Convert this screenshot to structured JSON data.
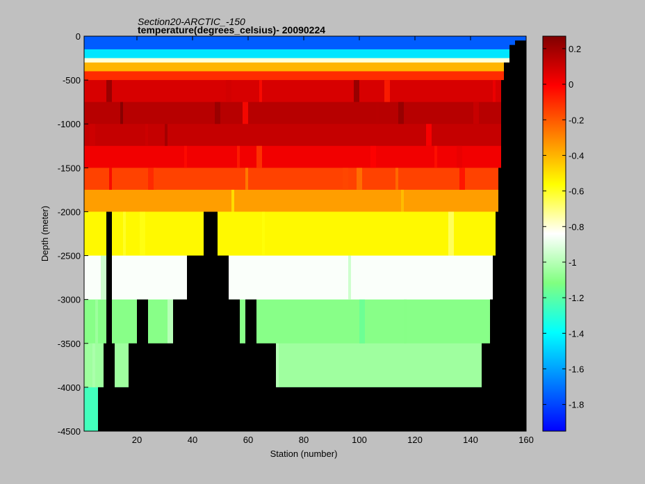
{
  "chart_data": {
    "type": "heatmap",
    "title_line1": "Section20-ARCTIC_-150",
    "title_line2": "temperature(degrees_celsius)- 20090224",
    "xlabel": "Station (number)",
    "ylabel": "Depth (meter)",
    "xlim": [
      1,
      160
    ],
    "ylim": [
      -4500,
      0
    ],
    "x_ticks": [
      20,
      40,
      60,
      80,
      100,
      120,
      140,
      160
    ],
    "y_ticks": [
      0,
      -500,
      -1000,
      -1500,
      -2000,
      -2500,
      -3000,
      -3500,
      -4000,
      -4500
    ],
    "colorbar": {
      "clim": [
        -1.95,
        0.27
      ],
      "ticks": [
        0.2,
        0,
        -0.2,
        -0.4,
        -0.6,
        -0.8,
        -1,
        -1.2,
        -1.4,
        -1.6,
        -1.8
      ],
      "colormap": "jet"
    },
    "layers": [
      {
        "top": 0,
        "bottom": -150,
        "value": -1.75
      },
      {
        "top": -150,
        "bottom": -250,
        "value": -1.45
      },
      {
        "top": -250,
        "bottom": -300,
        "value": -0.8
      },
      {
        "top": -300,
        "bottom": -400,
        "value": -0.4
      },
      {
        "top": -400,
        "bottom": -500,
        "value": -0.1
      },
      {
        "top": -500,
        "bottom": -750,
        "value": 0.08
      },
      {
        "top": -750,
        "bottom": -1000,
        "value": 0.15
      },
      {
        "top": -1000,
        "bottom": -1250,
        "value": 0.12
      },
      {
        "top": -1250,
        "bottom": -1500,
        "value": 0.02
      },
      {
        "top": -1500,
        "bottom": -1750,
        "value": -0.15
      },
      {
        "top": -1750,
        "bottom": -2000,
        "value": -0.35
      },
      {
        "top": -2000,
        "bottom": -2500,
        "value": -0.55
      },
      {
        "top": -2500,
        "bottom": -3000,
        "value": -0.85
      },
      {
        "top": -3000,
        "bottom": -3500,
        "value": -1.1
      },
      {
        "top": -3500,
        "bottom": -4000,
        "value": -1.05
      },
      {
        "top": -4000,
        "bottom": -4500,
        "value": -1.25
      }
    ],
    "bottom_depth_by_station": [
      [
        1,
        -4500
      ],
      [
        5,
        -4500
      ],
      [
        6,
        -4000
      ],
      [
        8,
        -3500
      ],
      [
        9,
        -2000
      ],
      [
        10,
        -2000
      ],
      [
        11,
        -3500
      ],
      [
        12,
        -4000
      ],
      [
        16,
        -4000
      ],
      [
        17,
        -3500
      ],
      [
        19,
        -3500
      ],
      [
        20,
        -3000
      ],
      [
        23,
        -3000
      ],
      [
        24,
        -3500
      ],
      [
        32,
        -3500
      ],
      [
        33,
        -3000
      ],
      [
        37,
        -3000
      ],
      [
        38,
        -2500
      ],
      [
        43,
        -2500
      ],
      [
        44,
        -2000
      ],
      [
        48,
        -2000
      ],
      [
        49,
        -2500
      ],
      [
        52,
        -2500
      ],
      [
        53,
        -3000
      ],
      [
        56,
        -3000
      ],
      [
        57,
        -3500
      ],
      [
        58,
        -3500
      ],
      [
        59,
        -3000
      ],
      [
        62,
        -3000
      ],
      [
        63,
        -3500
      ],
      [
        69,
        -3500
      ],
      [
        70,
        -4000
      ],
      [
        143,
        -4000
      ],
      [
        144,
        -3500
      ],
      [
        146,
        -3500
      ],
      [
        147,
        -3000
      ],
      [
        148,
        -2500
      ],
      [
        149,
        -2000
      ],
      [
        150,
        -1500
      ],
      [
        151,
        -500
      ],
      [
        152,
        -300
      ],
      [
        154,
        -100
      ],
      [
        156,
        -50
      ],
      [
        160,
        0
      ]
    ]
  }
}
